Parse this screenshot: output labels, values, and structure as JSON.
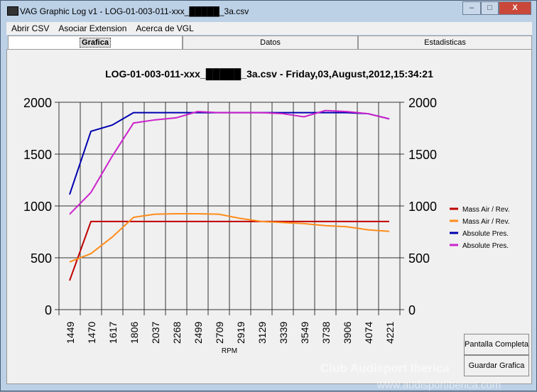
{
  "window": {
    "title": "VAG Graphic Log  v1 -  LOG-01-003-011-xxx_█████_3a.csv",
    "minimize": "–",
    "maximize": "□",
    "close": "X"
  },
  "menu": [
    "Abrir CSV",
    "Asociar Extension",
    "Acerca de VGL"
  ],
  "tabs": [
    {
      "label": "Grafica",
      "active": true
    },
    {
      "label": "Datos"
    },
    {
      "label": "Estadisticas"
    }
  ],
  "buttons": {
    "fullscreen": "Pantalla Completa",
    "save": "Guardar Grafica"
  },
  "watermark": {
    "line1": "Club Audisport Iberica",
    "line2": "www.audisportiberica.com"
  },
  "chart_data": {
    "type": "line",
    "title": "LOG-01-003-011-xxx_█████_3a.csv - Friday,03,August,2012,15:34:21",
    "xlabel": "RPM",
    "ylabel": "",
    "categories": [
      "1449",
      "1470",
      "1617",
      "1806",
      "2037",
      "2268",
      "2499",
      "2709",
      "2919",
      "3129",
      "3339",
      "3549",
      "3738",
      "3906",
      "4074",
      "4221"
    ],
    "ylim": [
      0,
      2000
    ],
    "yticks": [
      0,
      500,
      1000,
      1500,
      2000
    ],
    "grid": true,
    "legend": "right",
    "series": [
      {
        "name": "Mass Air / Rev.",
        "color": "#c00000",
        "values": [
          280,
          850,
          850,
          850,
          850,
          850,
          850,
          850,
          850,
          850,
          850,
          850,
          850,
          850,
          850,
          850
        ]
      },
      {
        "name": "Mass Air / Rev.",
        "color": "#ff8c1a",
        "values": [
          460,
          540,
          700,
          890,
          920,
          925,
          925,
          920,
          880,
          850,
          840,
          830,
          810,
          800,
          770,
          755
        ]
      },
      {
        "name": "Absolute Pres.",
        "color": "#0000b0",
        "values": [
          1110,
          1720,
          1780,
          1900,
          1900,
          1900,
          1900,
          1900,
          1900,
          1900,
          1900,
          1900,
          1900,
          1900,
          1890,
          1840
        ]
      },
      {
        "name": "Absolute Pres.",
        "color": "#cc22cc",
        "values": [
          920,
          1130,
          1480,
          1800,
          1830,
          1850,
          1910,
          1900,
          1900,
          1900,
          1890,
          1860,
          1920,
          1910,
          1890,
          1840
        ]
      }
    ]
  }
}
